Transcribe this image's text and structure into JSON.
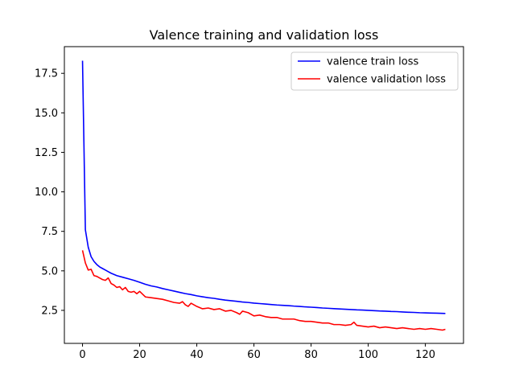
{
  "chart_data": {
    "type": "line",
    "title": "Valence training and validation loss",
    "xlabel": "",
    "ylabel": "",
    "xlim": [
      -6.35,
      133.35
    ],
    "ylim": [
      0.41,
      19.19
    ],
    "xticks": [
      0,
      20,
      40,
      60,
      80,
      100,
      120
    ],
    "yticks": [
      2.5,
      5.0,
      7.5,
      10.0,
      12.5,
      15.0,
      17.5
    ],
    "xtick_labels": [
      "0",
      "20",
      "40",
      "60",
      "80",
      "100",
      "120"
    ],
    "ytick_labels": [
      "2.5",
      "5.0",
      "7.5",
      "10.0",
      "12.5",
      "15.0",
      "17.5"
    ],
    "grid": false,
    "legend_position": "top-right",
    "series": [
      {
        "name": "valence train loss",
        "color": "#0000ff",
        "x": [
          0,
          1,
          2,
          3,
          4,
          5,
          6,
          7,
          8,
          9,
          10,
          12,
          14,
          16,
          18,
          20,
          22,
          24,
          26,
          28,
          30,
          32,
          34,
          36,
          38,
          40,
          42,
          44,
          46,
          48,
          50,
          52,
          54,
          56,
          58,
          60,
          62,
          64,
          66,
          68,
          70,
          72,
          74,
          76,
          78,
          80,
          82,
          84,
          86,
          88,
          90,
          92,
          94,
          96,
          98,
          100,
          102,
          104,
          106,
          108,
          110,
          112,
          114,
          116,
          118,
          120,
          122,
          124,
          127
        ],
        "values": [
          18.3,
          7.6,
          6.5,
          5.9,
          5.6,
          5.4,
          5.25,
          5.15,
          5.05,
          4.95,
          4.85,
          4.7,
          4.6,
          4.5,
          4.4,
          4.28,
          4.15,
          4.05,
          3.98,
          3.88,
          3.8,
          3.72,
          3.64,
          3.56,
          3.5,
          3.42,
          3.36,
          3.3,
          3.26,
          3.2,
          3.15,
          3.11,
          3.07,
          3.03,
          3.0,
          2.96,
          2.93,
          2.9,
          2.87,
          2.84,
          2.82,
          2.8,
          2.77,
          2.75,
          2.72,
          2.7,
          2.68,
          2.65,
          2.63,
          2.61,
          2.59,
          2.57,
          2.55,
          2.53,
          2.52,
          2.5,
          2.48,
          2.46,
          2.45,
          2.43,
          2.42,
          2.4,
          2.38,
          2.37,
          2.35,
          2.34,
          2.33,
          2.32,
          2.3
        ]
      },
      {
        "name": "valence validation loss",
        "color": "#ff0000",
        "x": [
          0,
          1,
          2,
          3,
          4,
          5,
          6,
          7,
          8,
          9,
          10,
          11,
          12,
          13,
          14,
          15,
          16,
          17,
          18,
          19,
          20,
          22,
          24,
          26,
          28,
          30,
          32,
          34,
          35,
          36,
          37,
          38,
          40,
          42,
          44,
          46,
          48,
          50,
          52,
          54,
          55,
          56,
          57,
          58,
          60,
          62,
          64,
          66,
          68,
          70,
          72,
          74,
          76,
          78,
          80,
          82,
          84,
          86,
          88,
          90,
          92,
          94,
          95,
          96,
          98,
          100,
          102,
          104,
          106,
          108,
          110,
          112,
          114,
          116,
          118,
          120,
          122,
          124,
          126,
          127
        ],
        "values": [
          6.3,
          5.5,
          5.05,
          5.1,
          4.7,
          4.65,
          4.55,
          4.45,
          4.4,
          4.55,
          4.2,
          4.1,
          3.95,
          4.0,
          3.8,
          3.95,
          3.7,
          3.65,
          3.7,
          3.55,
          3.7,
          3.35,
          3.3,
          3.25,
          3.2,
          3.1,
          3.0,
          2.95,
          3.05,
          2.85,
          2.75,
          2.95,
          2.75,
          2.6,
          2.65,
          2.55,
          2.6,
          2.45,
          2.5,
          2.35,
          2.25,
          2.45,
          2.4,
          2.35,
          2.15,
          2.2,
          2.1,
          2.05,
          2.05,
          1.95,
          1.95,
          1.95,
          1.85,
          1.8,
          1.8,
          1.75,
          1.7,
          1.7,
          1.6,
          1.6,
          1.55,
          1.6,
          1.75,
          1.55,
          1.5,
          1.45,
          1.5,
          1.4,
          1.45,
          1.4,
          1.35,
          1.4,
          1.35,
          1.3,
          1.35,
          1.3,
          1.35,
          1.3,
          1.25,
          1.3
        ]
      }
    ]
  }
}
